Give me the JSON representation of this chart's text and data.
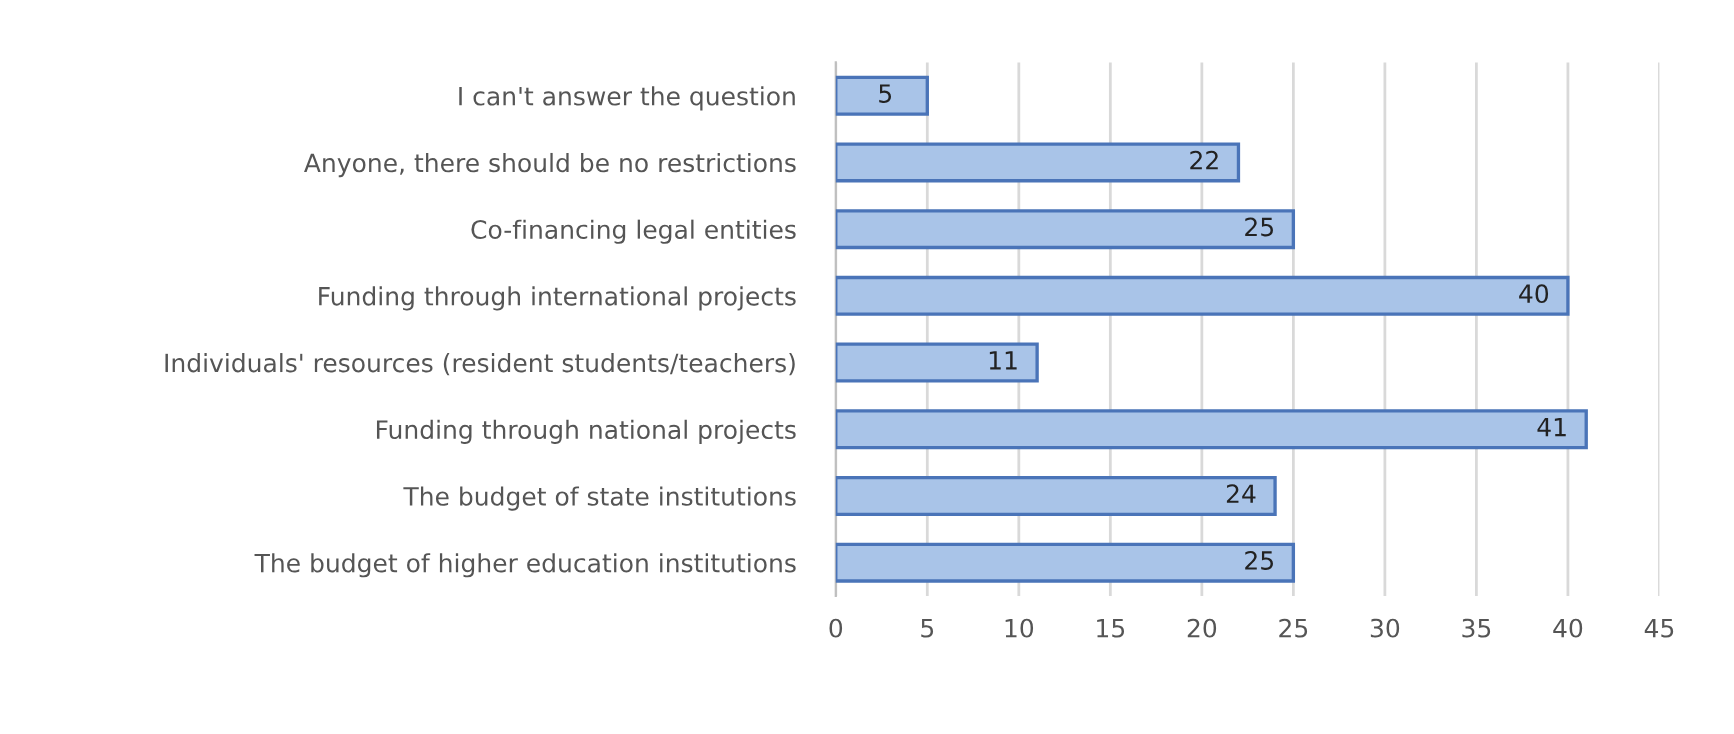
{
  "chart_data": {
    "type": "bar",
    "orientation": "horizontal",
    "categories": [
      "I can't answer the question",
      "Anyone, there should be no restrictions",
      "Co-financing legal entities",
      "Funding through international projects",
      "Individuals' resources (resident students/teachers)",
      "Funding through national projects",
      "The budget of state institutions",
      "The budget of higher education institutions"
    ],
    "values": [
      5,
      22,
      25,
      40,
      11,
      41,
      24,
      25
    ],
    "color": "#a9c4e8",
    "xlim": [
      0,
      45
    ],
    "xticks": [
      0,
      5,
      10,
      15,
      20,
      25,
      30,
      35,
      40,
      45
    ],
    "grid": "x",
    "data_labels": true
  }
}
